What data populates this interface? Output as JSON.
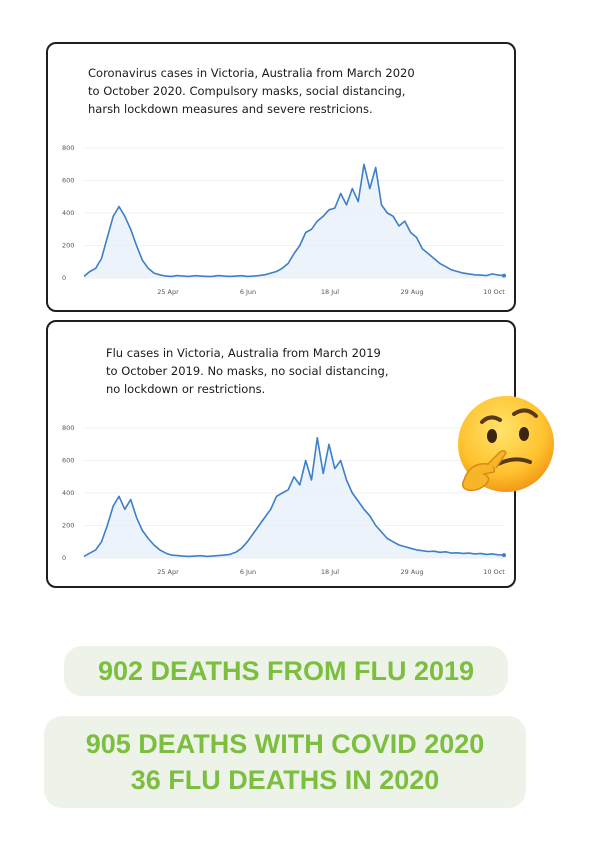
{
  "panels": [
    {
      "caption": "Coronavirus cases in Victoria, Australia from March 2020\nto October 2020.  Compulsory masks, social distancing,\nharsh lockdown measures and severe restricions.",
      "chart_data": {
        "type": "line",
        "title": "",
        "xlabel": "",
        "ylabel": "",
        "ylim": [
          0,
          800
        ],
        "y_ticks": [
          "0",
          "200",
          "400",
          "600",
          "800"
        ],
        "x_ticks": [
          "25 Apr",
          "6 Jun",
          "18 Jul",
          "29 Aug",
          "10 Oct"
        ],
        "grid": true,
        "line_color": "#3d7fc9",
        "series": [
          {
            "values": [
              10,
              40,
              60,
              120,
              250,
              380,
              440,
              380,
              300,
              200,
              110,
              60,
              30,
              20,
              12,
              10,
              15,
              12,
              10,
              14,
              12,
              10,
              10,
              15,
              12,
              10,
              12,
              14,
              10,
              12,
              15,
              20,
              30,
              40,
              60,
              90,
              150,
              200,
              280,
              300,
              350,
              380,
              420,
              430,
              520,
              450,
              550,
              470,
              700,
              550,
              680,
              450,
              400,
              380,
              320,
              350,
              280,
              250,
              180,
              150,
              120,
              90,
              70,
              50,
              40,
              30,
              25,
              20,
              18,
              15,
              25,
              18,
              15
            ]
          }
        ]
      }
    },
    {
      "caption": "Flu cases in Victoria, Australia from March 2019\nto October 2019.  No masks, no social distancing,\nno lockdown or restrictions.",
      "chart_data": {
        "type": "line",
        "title": "",
        "xlabel": "",
        "ylabel": "",
        "ylim": [
          0,
          800
        ],
        "y_ticks": [
          "0",
          "200",
          "400",
          "600",
          "800"
        ],
        "x_ticks": [
          "25 Apr",
          "6 Jun",
          "18 Jul",
          "29 Aug",
          "10 Oct"
        ],
        "grid": true,
        "line_color": "#3d7fc9",
        "series": [
          {
            "values": [
              10,
              30,
              50,
              100,
              200,
              320,
              380,
              300,
              360,
              250,
              170,
              120,
              80,
              50,
              30,
              18,
              15,
              12,
              10,
              12,
              14,
              10,
              12,
              15,
              18,
              22,
              35,
              60,
              100,
              150,
              200,
              250,
              300,
              380,
              400,
              420,
              500,
              450,
              600,
              480,
              740,
              520,
              700,
              550,
              600,
              480,
              400,
              350,
              300,
              260,
              200,
              160,
              120,
              100,
              80,
              70,
              60,
              50,
              45,
              40,
              42,
              35,
              38,
              30,
              32,
              28,
              30,
              25,
              28,
              22,
              25,
              20,
              18
            ]
          }
        ]
      }
    }
  ],
  "banners": {
    "flu_2019": "902 DEATHS FROM FLU 2019",
    "covid_line1": "905 DEATHS WITH COVID 2020",
    "covid_line2": "36 FLU DEATHS IN 2020"
  },
  "emoji": "thinking-face-icon"
}
